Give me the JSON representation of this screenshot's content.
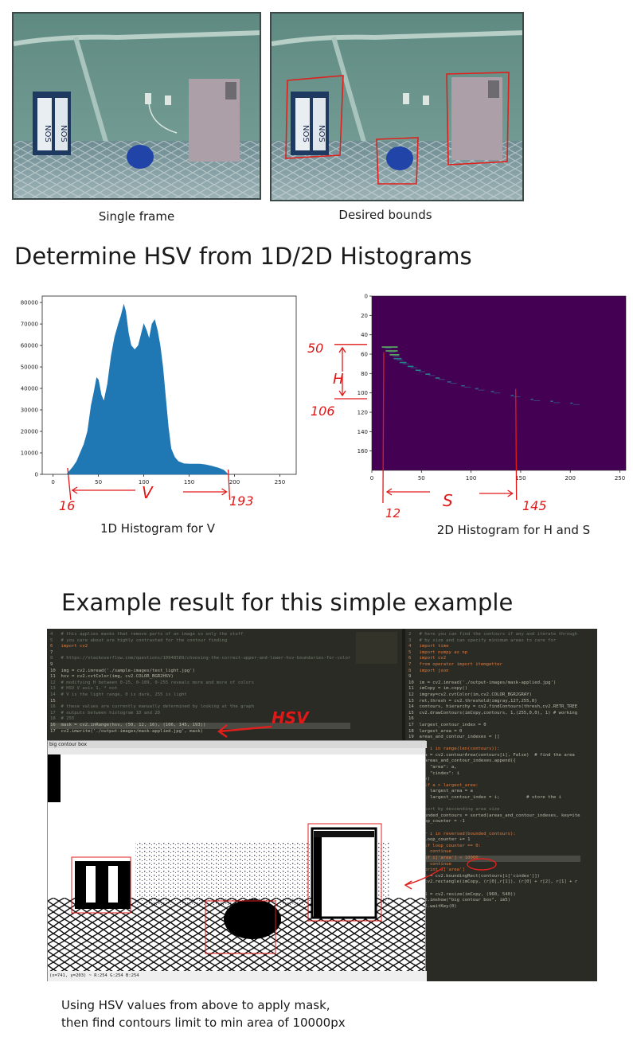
{
  "top_frames": {
    "left_caption": "Single frame",
    "right_caption": "Desired bounds"
  },
  "section_histograms": {
    "heading": "Determine HSV from 1D/2D Histograms"
  },
  "hist_v": {
    "caption": "1D Histogram for V",
    "annotation_letter": "V",
    "annotation_left": "16",
    "annotation_right": "193",
    "chart_data": {
      "type": "bar",
      "x_ticks": [
        0,
        50,
        100,
        150,
        200,
        250
      ],
      "y_ticks": [
        0,
        10000,
        20000,
        30000,
        40000,
        50000,
        60000,
        70000,
        80000
      ],
      "xlim": [
        -12,
        268
      ],
      "ylim": [
        0,
        83000
      ],
      "color": "#1f77b4",
      "points": [
        [
          15,
          0
        ],
        [
          18,
          1500
        ],
        [
          22,
          3500
        ],
        [
          26,
          6000
        ],
        [
          30,
          10000
        ],
        [
          34,
          14000
        ],
        [
          38,
          20000
        ],
        [
          42,
          32000
        ],
        [
          45,
          38000
        ],
        [
          48,
          45000
        ],
        [
          50,
          44000
        ],
        [
          53,
          37000
        ],
        [
          56,
          34000
        ],
        [
          60,
          42000
        ],
        [
          64,
          55000
        ],
        [
          68,
          64000
        ],
        [
          72,
          70000
        ],
        [
          75,
          74000
        ],
        [
          78,
          79000
        ],
        [
          80,
          76000
        ],
        [
          83,
          66000
        ],
        [
          86,
          60000
        ],
        [
          90,
          58000
        ],
        [
          94,
          60000
        ],
        [
          97,
          65000
        ],
        [
          100,
          70000
        ],
        [
          103,
          67000
        ],
        [
          106,
          63000
        ],
        [
          109,
          70000
        ],
        [
          112,
          72000
        ],
        [
          115,
          67000
        ],
        [
          118,
          60000
        ],
        [
          121,
          50000
        ],
        [
          124,
          36000
        ],
        [
          127,
          22000
        ],
        [
          130,
          12000
        ],
        [
          134,
          8000
        ],
        [
          138,
          6000
        ],
        [
          144,
          5000
        ],
        [
          150,
          4800
        ],
        [
          156,
          4800
        ],
        [
          162,
          4800
        ],
        [
          168,
          4500
        ],
        [
          175,
          3800
        ],
        [
          182,
          3000
        ],
        [
          188,
          2000
        ],
        [
          193,
          0
        ]
      ]
    }
  },
  "hist_hs": {
    "caption": "2D Histogram for H and S",
    "annotation_h_letter": "H",
    "annotation_h_top": "50",
    "annotation_h_bottom": "106",
    "annotation_s_letter": "S",
    "annotation_s_left": "12",
    "annotation_s_right": "145",
    "chart_data": {
      "type": "heatmap",
      "x_ticks": [
        0,
        50,
        100,
        150,
        200,
        250
      ],
      "y_ticks": [
        0,
        20,
        40,
        60,
        80,
        100,
        120,
        140,
        160
      ],
      "xlim": [
        0,
        256
      ],
      "ylim": [
        180,
        0
      ],
      "background": "#440154",
      "band_points": [
        [
          10,
          52
        ],
        [
          14,
          56
        ],
        [
          18,
          60
        ],
        [
          22,
          64
        ],
        [
          28,
          68
        ],
        [
          36,
          72
        ],
        [
          44,
          76
        ],
        [
          54,
          80
        ],
        [
          64,
          84
        ],
        [
          76,
          88
        ],
        [
          90,
          92
        ],
        [
          104,
          95
        ],
        [
          120,
          98
        ],
        [
          140,
          102
        ],
        [
          160,
          106
        ],
        [
          180,
          108
        ],
        [
          200,
          110
        ]
      ]
    }
  },
  "section_example": {
    "heading": "Example result for this simple example"
  },
  "editor": {
    "left_code": [
      "4   # this applies masks that remove parts of an image so only the stuff",
      "5   # you care about are highly contrasted for the contour finding",
      "6   import cv2",
      "7",
      "8   # https://stackoverflow.com/questions/10948589/choosing-the-correct-upper-and-lower-hsv-boundaries-for-color",
      "9",
      "10  img = cv2.imread('./sample-images/test_light.jpg')",
      "11  hsv = cv2.cvtColor(img, cv2.COLOR_BGR2HSV)",
      "12  # modifying H between 0-25, 0-189, 0-255 reveals more and more of colors",
      "13  # HSV V axis 1, * not",
      "14  # V is the light range, 0 is dark, 255 is light",
      "15",
      "16  # these values are currently manually determined by looking at the graph",
      "17  # outputs between histogram 1D and 2D",
      "18  # 255",
      "16  mask = cv2.inRange(hsv, (50, 12, 16), (106, 145, 193))",
      "17  cv2.imwrite('./output-images/mask-applied.jpg', mask)"
    ],
    "right_code": [
      "2   # here you can find the contours if any and iterate through",
      "3   # by size and can specify minimum areas to care for",
      "4   import time",
      "5   import numpy as np",
      "6   import cv2",
      "7   from operator import itemgetter",
      "8   import json",
      "9",
      "10  im = cv2.imread('./output-images/mask-applied.jpg')",
      "11  imCopy = im.copy()",
      "12  imgray=cv2.cvtColor(im,cv2.COLOR_BGR2GRAY)",
      "13  ret,thresh = cv2.threshold(imgray,127,255,0)",
      "14  contours, hierarchy = cv2.findContours(thresh,cv2.RETR_TREE",
      "15  cv2.drawContours(imCopy,contours, 1,(255,0,0), 1) # working",
      "16",
      "17  largest_contour_index = 0",
      "18  largest_area = 0",
      "19  areas_and_contour_indexes = []",
      "20",
      "21  for i in range(len(contours)):",
      "22    a = cv2.contourArea(contours[i], False)  # find the area",
      "23    areas_and_contour_indexes.append({",
      "24      \"area\": a,",
      "25      \"cindex\": i",
      "26    })",
      "27    if a > largest_area:",
      "28      largest_area = a",
      "29      largest_contour_index = i;          # store the i",
      "30",
      "31  # sort by descending area size",
      "32  bounded_contours = sorted(areas_and_contour_indexes, key=ite",
      "33  loop_counter = -1",
      "34",
      "35  for i in reversed(bounded_contours):",
      "36    loop_counter += 1",
      "37    if loop_counter == 0:",
      "38      continue",
      "39    if i['area'] < 10000:",
      "40      continue",
      "41    print i['area']",
      "42    r = cv2.boundingRect(contours[i['cindex']])",
      "43    cv2.rectangle(imCopy, (r[0],r[1]), (r[0] + r[2], r[1] + r",
      "44",
      "45  im5 = cv2.resize(imCopy, (960, 540))",
      "46  cv2.imshow(\"big contour box\", im5)",
      "47  cv2.waitKey(0)"
    ],
    "window_title": "big contour box",
    "status_bar": "(x=741, y=203) ~ R:254 G:254 B:254",
    "hsv_annotation": "HSV"
  },
  "footer_text": {
    "line1": "Using HSV values from above to apply mask,",
    "line2": "then find contours limit to min area of 10000px"
  }
}
